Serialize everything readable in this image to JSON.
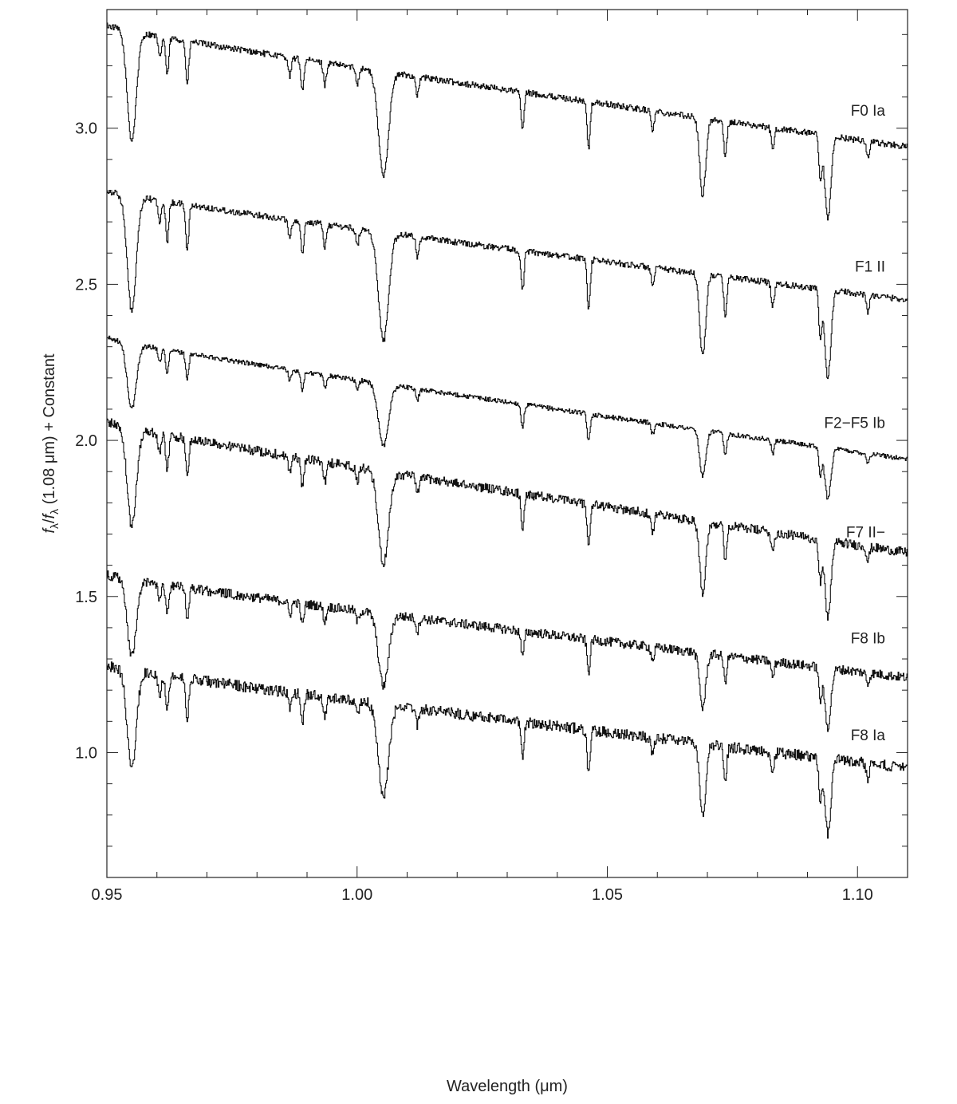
{
  "chart_data": {
    "type": "line",
    "title": "",
    "xlabel": "Wavelength (μm)",
    "ylabel_parts": {
      "f1": "f",
      "sub1": "λ",
      "slash": "/",
      "f2": "f",
      "sub2": "λ",
      "rest": " (1.08 μm) + Constant"
    },
    "xlim": [
      0.95,
      1.11
    ],
    "ylim": [
      0.6,
      3.38
    ],
    "x_ticks": [
      0.95,
      1.0,
      1.05,
      1.1
    ],
    "x_tick_labels": [
      "0.95",
      "1.00",
      "1.05",
      "1.10"
    ],
    "y_ticks": [
      1.0,
      1.5,
      2.0,
      2.5,
      3.0
    ],
    "y_tick_labels": [
      "1.0",
      "1.5",
      "2.0",
      "2.5",
      "3.0"
    ],
    "grid": false,
    "legend": "none",
    "line_color": "#111111",
    "absorption_features": [
      {
        "x": 0.9549,
        "depth": 0.35,
        "width": 0.0009
      },
      {
        "x": 0.9605,
        "depth": 0.07,
        "width": 0.0003
      },
      {
        "x": 0.962,
        "depth": 0.12,
        "width": 0.0003
      },
      {
        "x": 0.966,
        "depth": 0.14,
        "width": 0.0003
      },
      {
        "x": 0.9865,
        "depth": 0.06,
        "width": 0.0003
      },
      {
        "x": 0.989,
        "depth": 0.1,
        "width": 0.0003
      },
      {
        "x": 0.9935,
        "depth": 0.07,
        "width": 0.0003
      },
      {
        "x": 1.0,
        "depth": 0.05,
        "width": 0.0003
      },
      {
        "x": 1.0052,
        "depth": 0.33,
        "width": 0.001
      },
      {
        "x": 1.012,
        "depth": 0.06,
        "width": 0.0003
      },
      {
        "x": 1.033,
        "depth": 0.12,
        "width": 0.0003
      },
      {
        "x": 1.0462,
        "depth": 0.15,
        "width": 0.0003
      },
      {
        "x": 1.059,
        "depth": 0.06,
        "width": 0.0003
      },
      {
        "x": 1.069,
        "depth": 0.25,
        "width": 0.0006
      },
      {
        "x": 1.0735,
        "depth": 0.12,
        "width": 0.0003
      },
      {
        "x": 1.083,
        "depth": 0.07,
        "width": 0.0003
      },
      {
        "x": 1.0925,
        "depth": 0.14,
        "width": 0.0003
      },
      {
        "x": 1.094,
        "depth": 0.27,
        "width": 0.0006
      },
      {
        "x": 1.102,
        "depth": 0.05,
        "width": 0.0003
      }
    ],
    "series": [
      {
        "name": "F0 Ia",
        "label_y": 3.04,
        "start": 3.33,
        "end": 2.94,
        "line_scale": 1.0,
        "bump_scale": 0.02
      },
      {
        "name": "F1 II",
        "label_y": 2.54,
        "start": 2.8,
        "end": 2.45,
        "line_scale": 1.05,
        "bump_scale": 0.02
      },
      {
        "name": "F2−F5 Ib",
        "label_y": 2.04,
        "start": 2.33,
        "end": 1.94,
        "line_scale": 0.6,
        "bump_scale": 0.015
      },
      {
        "name": "F7 II−",
        "label_y": 1.69,
        "start": 2.06,
        "end": 1.64,
        "line_scale": 0.9,
        "bump_scale": 0.03
      },
      {
        "name": "F8 Ib",
        "label_y": 1.35,
        "start": 1.57,
        "end": 1.24,
        "line_scale": 0.7,
        "bump_scale": 0.03
      },
      {
        "name": "F8 Ia",
        "label_y": 1.04,
        "start": 1.28,
        "end": 0.95,
        "line_scale": 0.9,
        "bump_scale": 0.035
      }
    ]
  }
}
